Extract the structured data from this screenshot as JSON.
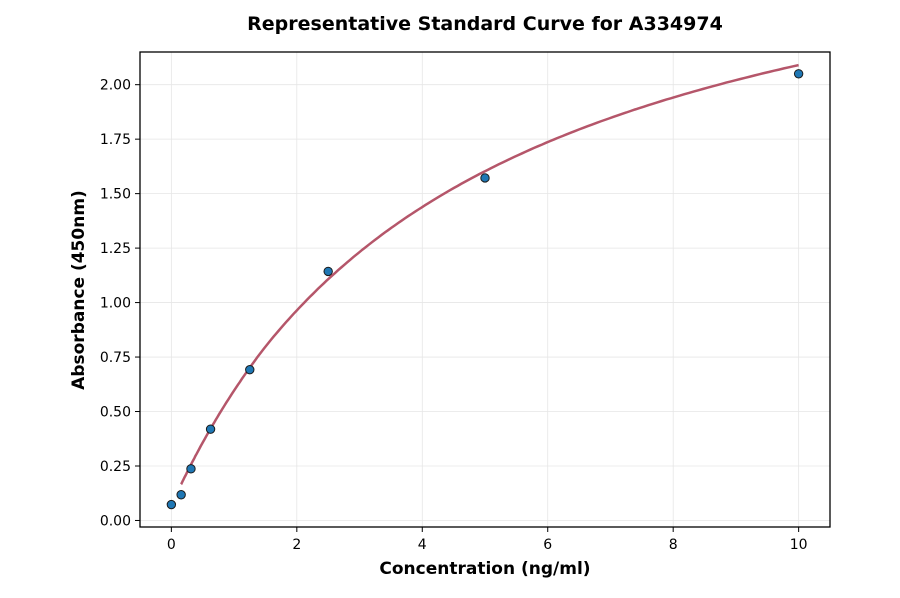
{
  "chart_data": {
    "type": "scatter",
    "title": "Representative Standard Curve for A334974",
    "xlabel": "Concentration (ng/ml)",
    "ylabel": "Absorbance (450nm)",
    "xlim": [
      -0.5,
      10.5
    ],
    "ylim": [
      -0.03,
      2.15
    ],
    "xticks": [
      0,
      2,
      4,
      6,
      8,
      10
    ],
    "xtick_labels": [
      "0",
      "2",
      "4",
      "6",
      "8",
      "10"
    ],
    "yticks": [
      0,
      0.25,
      0.5,
      0.75,
      1.0,
      1.25,
      1.5,
      1.75,
      2.0
    ],
    "ytick_labels": [
      "0.00",
      "0.25",
      "0.50",
      "0.75",
      "1.00",
      "1.25",
      "1.50",
      "1.75",
      "2.00"
    ],
    "grid": true,
    "points": {
      "x": [
        0,
        0.156,
        0.3125,
        0.625,
        1.25,
        2.5,
        5,
        10
      ],
      "y": [
        0.073,
        0.118,
        0.237,
        0.419,
        0.692,
        1.143,
        1.572,
        2.05
      ]
    },
    "fit": {
      "name": "fitted curve",
      "x_range": [
        0.156,
        10
      ]
    },
    "colors": {
      "point": "#1f77b4",
      "curve": "#b5566a"
    }
  }
}
